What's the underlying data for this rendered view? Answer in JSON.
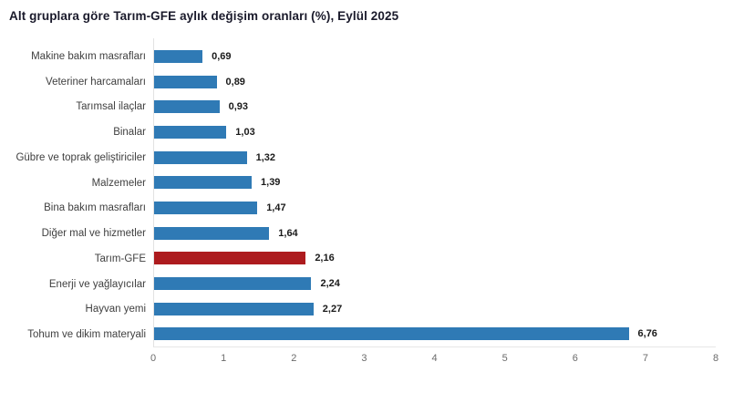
{
  "title": "Alt gruplara göre Tarım-GFE aylık değişim oranları (%), Eylül 2025",
  "colors": {
    "bar": "#2f7ab5",
    "highlight": "#ad1b1e",
    "title_text": "#1a1a2b",
    "category_label": "#3f3f3f",
    "value_label": "#1a1a1a",
    "axis_line": "#e2e2e2",
    "tick_label": "#6b6b6b"
  },
  "chart_data": {
    "type": "bar",
    "orientation": "horizontal",
    "title": "Alt gruplara göre Tarım-GFE aylık değişim oranları (%), Eylül 2025",
    "categories": [
      "Makine bakım masrafları",
      "Veteriner harcamaları",
      "Tarımsal ilaçlar",
      "Binalar",
      "Gübre ve toprak geliştiriciler",
      "Malzemeler",
      "Bina bakım masrafları",
      "Diğer mal ve hizmetler",
      "Tarım-GFE",
      "Enerji  ve yağlayıcılar",
      "Hayvan yemi",
      "Tohum ve dikim materyali"
    ],
    "values": [
      0.69,
      0.89,
      0.93,
      1.03,
      1.32,
      1.39,
      1.47,
      1.64,
      2.16,
      2.24,
      2.27,
      6.76
    ],
    "value_labels": [
      "0,69",
      "0,89",
      "0,93",
      "1,03",
      "1,32",
      "1,39",
      "1,47",
      "1,64",
      "2,16",
      "2,24",
      "2,27",
      "6,76"
    ],
    "highlight_index": 8,
    "highlight_category": "Tarım-GFE",
    "xlabel": "",
    "ylabel": "",
    "xlim": [
      0,
      8
    ],
    "x_ticks": [
      "0",
      "1",
      "2",
      "3",
      "4",
      "5",
      "6",
      "7",
      "8"
    ],
    "grid": false,
    "legend": false
  }
}
